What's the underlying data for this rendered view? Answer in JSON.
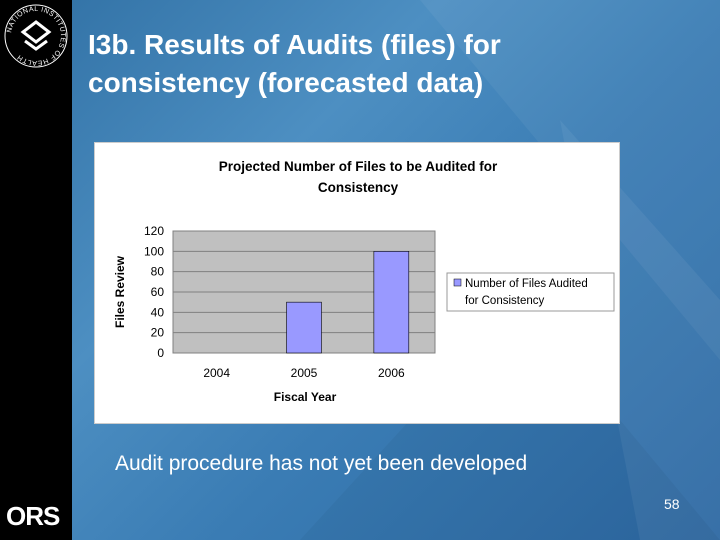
{
  "slide": {
    "title_line1": "I3b. Results of Audits (files) for",
    "title_line2": "consistency (forecasted data)",
    "caption": "Audit procedure has not yet been developed",
    "page_number": "58"
  },
  "branding": {
    "ors_logo_text": "ORS",
    "nih_logo_text": "NATIONAL INSTITUTES OF HEALTH"
  },
  "colors": {
    "background": "#3a7cb4",
    "sidebar": "#000000",
    "bar_fill": "#9999ff",
    "plot_area": "#c0c0c0"
  },
  "chart_data": {
    "type": "bar",
    "title_line1": "Projected Number of Files to be Audited for",
    "title_line2": "Consistency",
    "xlabel": "Fiscal Year",
    "ylabel": "Files Review",
    "categories": [
      "2004",
      "2005",
      "2006"
    ],
    "series": [
      {
        "name": "Number of Files Audited for Consistency",
        "values": [
          0,
          50,
          100
        ]
      }
    ],
    "legend_line1": "Number of Files Audited",
    "legend_line2": "for Consistency",
    "legend_position": "right",
    "ylim": [
      0,
      120
    ],
    "yticks": [
      "0",
      "20",
      "40",
      "60",
      "80",
      "100",
      "120"
    ],
    "grid": true
  }
}
